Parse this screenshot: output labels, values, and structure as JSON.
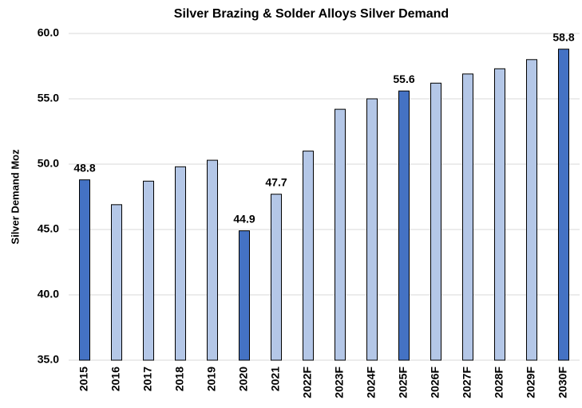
{
  "chart_data": {
    "type": "bar",
    "title": "Silver Brazing & Solder Alloys Silver Demand",
    "y_label": "Silver Demand Moz",
    "categories": [
      "2015",
      "2016",
      "2017",
      "2018",
      "2019",
      "2020",
      "2021",
      "2022F",
      "2023F",
      "2024F",
      "2025F",
      "2026F",
      "2027F",
      "2028F",
      "2029F",
      "2030F"
    ],
    "values": [
      48.8,
      46.9,
      48.7,
      49.8,
      50.3,
      44.9,
      47.7,
      51.0,
      54.2,
      55.0,
      55.6,
      56.2,
      56.9,
      57.3,
      58.0,
      58.8
    ],
    "value_labels": [
      "48.8",
      null,
      null,
      null,
      null,
      "44.9",
      "47.7",
      null,
      null,
      null,
      "55.6",
      null,
      null,
      null,
      null,
      "58.8"
    ],
    "colors": [
      "#4472c4",
      "#b4c7e7",
      "#b4c7e7",
      "#b4c7e7",
      "#b4c7e7",
      "#4472c4",
      "#b4c7e7",
      "#b4c7e7",
      "#b4c7e7",
      "#b4c7e7",
      "#4472c4",
      "#b4c7e7",
      "#b4c7e7",
      "#b4c7e7",
      "#b4c7e7",
      "#4472c4"
    ],
    "ylim": [
      35,
      60
    ],
    "yticks": [
      {
        "value": 35,
        "label": "35.0"
      },
      {
        "value": 40,
        "label": "40.0"
      },
      {
        "value": 45,
        "label": "45.0"
      },
      {
        "value": 50,
        "label": "50.0"
      },
      {
        "value": 55,
        "label": "55.0"
      },
      {
        "value": 60,
        "label": "60.0"
      }
    ],
    "grid": true
  }
}
